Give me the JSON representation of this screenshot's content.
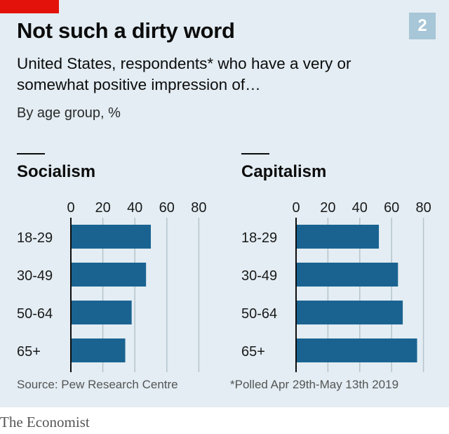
{
  "header": {
    "title": "Not such a dirty word",
    "chart_number": "2",
    "subtitle": "United States, respondents* who have a very or somewhat positive impression of…",
    "unit": "By age group, %"
  },
  "footer": {
    "source": "Source: Pew Research Centre",
    "footnote": "*Polled Apr 29th-May 13th 2019",
    "publisher": "The Economist"
  },
  "colors": {
    "bar": "#1a6391",
    "background": "#e3edf3",
    "accent_red": "#e3120b",
    "gridline": "#b6c4cc"
  },
  "chart_data": [
    {
      "type": "bar",
      "orientation": "horizontal",
      "title": "Socialism",
      "categories": [
        "18-29",
        "30-49",
        "50-64",
        "65+"
      ],
      "values": [
        50,
        47,
        38,
        34
      ],
      "xlim": [
        0,
        80
      ],
      "ticks": [
        "0",
        "20",
        "40",
        "60",
        "80"
      ],
      "grid": true
    },
    {
      "type": "bar",
      "orientation": "horizontal",
      "title": "Capitalism",
      "categories": [
        "18-29",
        "30-49",
        "50-64",
        "65+"
      ],
      "values": [
        52,
        64,
        67,
        76
      ],
      "xlim": [
        0,
        80
      ],
      "ticks": [
        "0",
        "20",
        "40",
        "60",
        "80"
      ],
      "grid": true
    }
  ]
}
